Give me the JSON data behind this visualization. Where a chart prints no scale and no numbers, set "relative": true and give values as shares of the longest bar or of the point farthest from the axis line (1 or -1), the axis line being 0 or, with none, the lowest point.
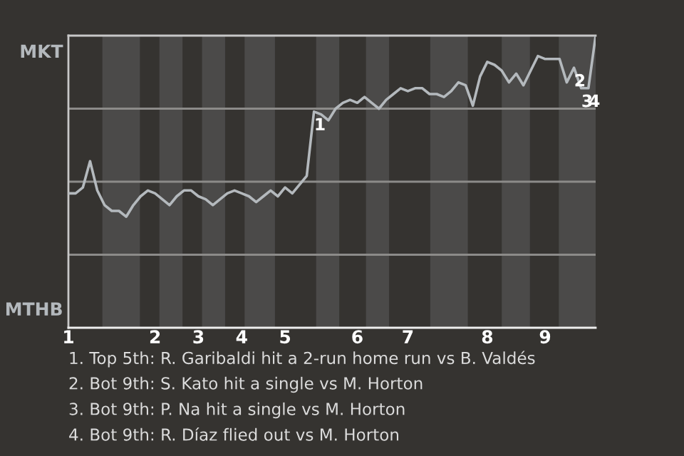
{
  "chart_data": {
    "type": "line",
    "relative": true,
    "categories": [
      "1",
      null,
      null,
      null,
      null,
      null,
      null,
      null,
      null,
      null,
      null,
      null,
      "2",
      null,
      null,
      null,
      null,
      null,
      "3",
      null,
      null,
      null,
      null,
      null,
      "4",
      null,
      null,
      null,
      null,
      null,
      "5",
      null,
      null,
      null,
      null,
      null,
      null,
      null,
      null,
      null,
      "6",
      null,
      null,
      null,
      null,
      null,
      null,
      "7",
      null,
      null,
      null,
      null,
      null,
      null,
      null,
      null,
      null,
      null,
      "8",
      null,
      null,
      null,
      null,
      null,
      null,
      null,
      "9",
      null,
      null,
      null,
      null,
      null,
      null,
      null
    ],
    "series": [
      {
        "color": "#b4b9bd",
        "values": [
          0.46,
          0.46,
          0.48,
          0.57,
          0.47,
          0.42,
          0.4,
          0.4,
          0.38,
          0.42,
          0.45,
          0.47,
          0.46,
          0.44,
          0.42,
          0.45,
          0.47,
          0.47,
          0.45,
          0.44,
          0.42,
          0.44,
          0.46,
          0.47,
          0.46,
          0.45,
          0.43,
          0.45,
          0.47,
          0.45,
          0.48,
          0.46,
          0.49,
          0.52,
          0.74,
          0.73,
          0.71,
          0.75,
          0.77,
          0.78,
          0.77,
          0.79,
          0.77,
          0.75,
          0.78,
          0.8,
          0.82,
          0.81,
          0.82,
          0.82,
          0.8,
          0.8,
          0.79,
          0.81,
          0.84,
          0.83,
          0.76,
          0.86,
          0.91,
          0.9,
          0.88,
          0.84,
          0.87,
          0.83,
          0.88,
          0.93,
          0.92,
          0.92,
          0.92,
          0.84,
          0.89,
          0.82,
          0.82,
          1.0
        ]
      }
    ],
    "ref_lines": [
      {
        "axis": "y",
        "value": 0.25,
        "color": "#8c8b89"
      },
      {
        "axis": "y",
        "value": 0.5,
        "color": "#8c8b89"
      },
      {
        "axis": "y",
        "value": 0.75,
        "color": "#8c8b89"
      }
    ],
    "annotations": [
      "MKT",
      "MTHB",
      {
        "text": "1",
        "y": 0.74
      },
      {
        "text": "2",
        "y": 0.89
      },
      {
        "text": "3",
        "y": 0.82
      },
      {
        "text": "4",
        "y": 0.82
      },
      "1. Top 5th: R. Garibaldi hit a 2-run home run vs B. Valdés",
      "2. Bot 9th: S. Kato hit a single vs M. Horton",
      "3. Bot 9th: P. Na hit a single vs M. Horton",
      "4. Bot 9th: R. Díaz flied out vs M. Horton"
    ],
    "grid": false,
    "legend": false,
    "marker": "none",
    "line_style": "solid"
  }
}
